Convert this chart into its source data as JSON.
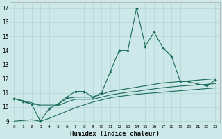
{
  "xlabel": "Humidex (Indice chaleur)",
  "xlim": [
    -0.5,
    23.5
  ],
  "ylim": [
    8.8,
    17.4
  ],
  "yticks": [
    9,
    10,
    11,
    12,
    13,
    14,
    15,
    16,
    17
  ],
  "xticks": [
    0,
    1,
    2,
    3,
    4,
    5,
    6,
    7,
    8,
    9,
    10,
    11,
    12,
    13,
    14,
    15,
    16,
    17,
    18,
    19,
    20,
    21,
    22,
    23
  ],
  "background_color": "#cce8e8",
  "grid_color": "#b8d8d8",
  "line_color": "#1a6b5a",
  "line1": [
    10.6,
    10.4,
    10.2,
    9.0,
    9.9,
    10.2,
    10.7,
    11.1,
    11.1,
    10.7,
    11.0,
    12.5,
    14.0,
    14.0,
    17.0,
    14.3,
    15.3,
    14.2,
    13.6,
    11.8,
    11.8,
    11.6,
    11.5,
    11.9
  ],
  "line2": [
    10.6,
    10.4,
    10.2,
    10.2,
    10.2,
    10.2,
    10.6,
    10.7,
    10.7,
    10.7,
    10.9,
    11.1,
    11.2,
    11.3,
    11.4,
    11.5,
    11.6,
    11.7,
    11.75,
    11.8,
    11.85,
    11.9,
    11.95,
    12.0
  ],
  "line3": [
    10.6,
    10.45,
    10.3,
    10.1,
    10.1,
    10.1,
    10.35,
    10.55,
    10.55,
    10.55,
    10.7,
    10.85,
    10.95,
    11.05,
    11.1,
    11.2,
    11.28,
    11.36,
    11.42,
    11.48,
    11.52,
    11.56,
    11.6,
    11.65
  ],
  "line4": [
    9.0,
    9.05,
    9.1,
    9.0,
    9.2,
    9.45,
    9.7,
    9.95,
    10.15,
    10.35,
    10.5,
    10.65,
    10.75,
    10.82,
    10.9,
    10.95,
    11.0,
    11.05,
    11.1,
    11.15,
    11.2,
    11.25,
    11.3,
    11.35
  ]
}
